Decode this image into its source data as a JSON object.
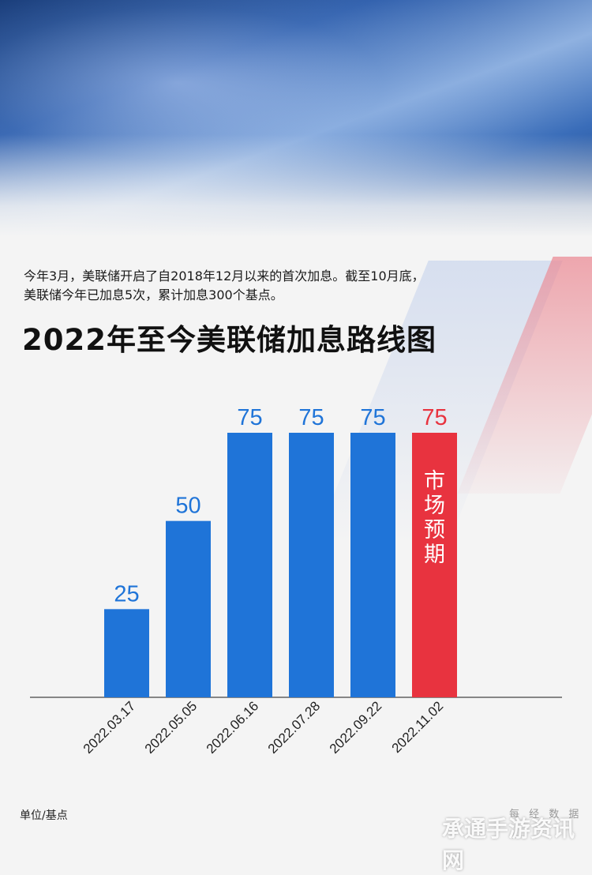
{
  "intro": {
    "line1": "今年3月，美联储开启了自2018年12月以来的首次加息。截至10月底，",
    "line2": "美联储今年已加息5次，累计加息300个基点。"
  },
  "title": "2022年至今美联储加息路线图",
  "chart_data": {
    "type": "bar",
    "title": "2022年至今美联储加息路线图",
    "categories": [
      "2022.03.17",
      "2022.05.05",
      "2022.06.16",
      "2022.07.28",
      "2022.09.22",
      "2022.11.02"
    ],
    "values": [
      25,
      50,
      75,
      75,
      75,
      75
    ],
    "highlight": {
      "index": 5,
      "label": "市场预期",
      "color": "#e8333f"
    },
    "bar_color": "#1f74d8",
    "value_label_color": "#1f74d8",
    "ylim": [
      0,
      75
    ],
    "grid": false,
    "legend": "none",
    "unit": "单位/基点"
  },
  "unit_label": "单位/基点",
  "source_label": "每 经 数 据",
  "watermark": "承通手游资讯网"
}
